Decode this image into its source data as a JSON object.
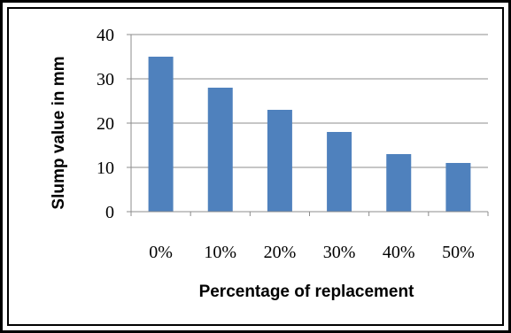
{
  "chart_data": {
    "type": "bar",
    "title": "",
    "xlabel": "Percentage of replacement",
    "ylabel": "Slump value in mm",
    "categories": [
      "0%",
      "10%",
      "20%",
      "30%",
      "40%",
      "50%"
    ],
    "values": [
      35,
      28,
      23,
      18,
      13,
      11
    ],
    "ylim": [
      0,
      40
    ],
    "yticks": [
      "0",
      "10",
      "20",
      "30",
      "40"
    ],
    "grid": true,
    "legend": "none",
    "bar_color": "#4f81bd"
  }
}
